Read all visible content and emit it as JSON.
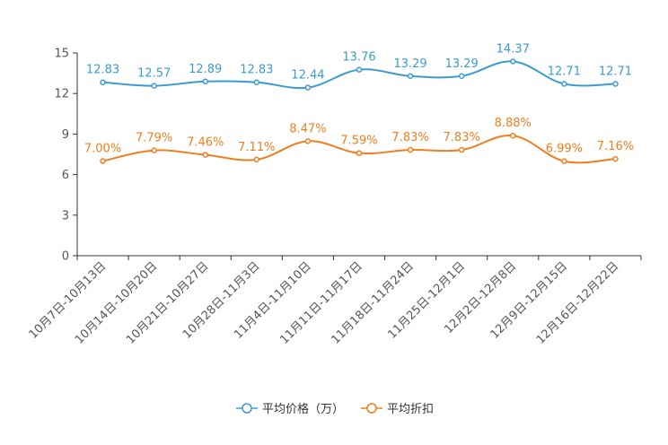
{
  "chart_data": {
    "type": "line",
    "title": "",
    "xlabel": "",
    "ylabel": "",
    "ylim": [
      0,
      15
    ],
    "yticks": [
      0,
      3,
      6,
      9,
      12,
      15
    ],
    "categories": [
      "10月7日-10月13日",
      "10月14日-10月20日",
      "10月21日-10月27日",
      "10月28日-11月3日",
      "11月4日-11月10日",
      "11月11日-11月17日",
      "11月18日-11月24日",
      "11月25日-12月1日",
      "12月2日-12月8日",
      "12月9日-12月15日",
      "12月16日-12月22日"
    ],
    "series": [
      {
        "name": "平均价格（万）",
        "color": "#3b9bd1",
        "values": [
          12.83,
          12.57,
          12.89,
          12.83,
          12.44,
          13.76,
          13.29,
          13.29,
          14.37,
          12.71,
          12.71
        ],
        "labels": [
          "12.83",
          "12.57",
          "12.89",
          "12.83",
          "12.44",
          "13.76",
          "13.29",
          "13.29",
          "14.37",
          "12.71",
          "12.71"
        ]
      },
      {
        "name": "平均折扣",
        "color": "#f07e1e",
        "values": [
          7.0,
          7.79,
          7.46,
          7.11,
          8.47,
          7.59,
          7.83,
          7.83,
          8.88,
          6.99,
          7.16
        ],
        "labels": [
          "7.00%",
          "7.79%",
          "7.46%",
          "7.11%",
          "8.47%",
          "7.59%",
          "7.83%",
          "7.83%",
          "8.88%",
          "6.99%",
          "7.16%"
        ]
      }
    ],
    "grid": false,
    "legend": "bottom-center"
  }
}
